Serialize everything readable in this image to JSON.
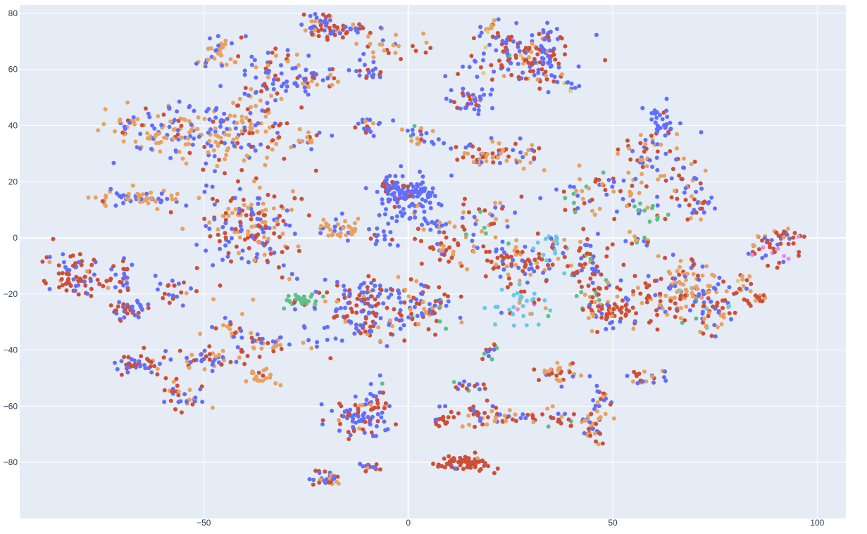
{
  "chart_data": {
    "type": "scatter",
    "title": "",
    "xlabel": "",
    "ylabel": "",
    "xlim": [
      -95,
      107
    ],
    "ylim": [
      -100,
      83
    ],
    "x_ticks": [
      -50,
      0,
      50,
      100
    ],
    "y_ticks": [
      80,
      60,
      40,
      20,
      0,
      -20,
      -40,
      -60,
      -80
    ],
    "x_tick_labels": [
      "−50",
      "0",
      "50",
      "100"
    ],
    "y_tick_labels": [
      "80",
      "60",
      "40",
      "20",
      "0",
      "−20",
      "−40",
      "−60",
      "−80"
    ],
    "grid": true,
    "legend": "none",
    "colors": {
      "blue": "#636efa",
      "red": "#cd4f37",
      "orange": "#e9a160",
      "green": "#5fbf8a",
      "cyan": "#6cc7e6",
      "pink": "#e88ae0",
      "yellow": "#d8d07a",
      "background": "#e5ecf6",
      "grid": "#ffffff",
      "tick_text": "#2a3f5f"
    },
    "clusters": [
      {
        "cx": -22,
        "cy": 76,
        "sx": 2.5,
        "sy": 2.5,
        "n": 40,
        "mix": [
          0.55,
          0.25,
          0.2,
          0,
          0,
          0,
          0
        ]
      },
      {
        "cx": -15,
        "cy": 74,
        "sx": 3.5,
        "sy": 1.5,
        "n": 35,
        "mix": [
          0.6,
          0.3,
          0.1,
          0,
          0,
          0,
          0
        ]
      },
      {
        "cx": -5,
        "cy": 68,
        "sx": 4,
        "sy": 2,
        "n": 25,
        "mix": [
          0.2,
          0.2,
          0.6,
          0,
          0,
          0,
          0
        ]
      },
      {
        "cx": -46,
        "cy": 67,
        "sx": 3,
        "sy": 4,
        "n": 35,
        "mix": [
          0.5,
          0.15,
          0.35,
          0,
          0,
          0,
          0
        ]
      },
      {
        "cx": -33,
        "cy": 58,
        "sx": 4,
        "sy": 5,
        "n": 60,
        "mix": [
          0.55,
          0.25,
          0.2,
          0,
          0,
          0,
          0
        ]
      },
      {
        "cx": -24,
        "cy": 57,
        "sx": 3,
        "sy": 3,
        "n": 30,
        "mix": [
          0.35,
          0.35,
          0.3,
          0,
          0,
          0,
          0
        ]
      },
      {
        "cx": -11,
        "cy": 59,
        "sx": 2,
        "sy": 2,
        "n": 20,
        "mix": [
          0.6,
          0.3,
          0.1,
          0,
          0,
          0,
          0
        ]
      },
      {
        "cx": -57,
        "cy": 38,
        "sx": 8,
        "sy": 5,
        "n": 130,
        "mix": [
          0.4,
          0.1,
          0.5,
          0,
          0,
          0,
          0
        ]
      },
      {
        "cx": -40,
        "cy": 38,
        "sx": 6,
        "sy": 6,
        "n": 120,
        "mix": [
          0.45,
          0.2,
          0.35,
          0,
          0,
          0,
          0
        ]
      },
      {
        "cx": -25,
        "cy": 35,
        "sx": 2,
        "sy": 2,
        "n": 15,
        "mix": [
          0.3,
          0.2,
          0.5,
          0,
          0,
          0,
          0
        ]
      },
      {
        "cx": -10,
        "cy": 40,
        "sx": 2,
        "sy": 2,
        "n": 20,
        "mix": [
          0.7,
          0.2,
          0.1,
          0,
          0,
          0,
          0
        ]
      },
      {
        "cx": -68,
        "cy": 14,
        "sx": 5,
        "sy": 1.5,
        "n": 60,
        "mix": [
          0.35,
          0.05,
          0.6,
          0,
          0,
          0,
          0
        ]
      },
      {
        "cx": -38,
        "cy": 4,
        "sx": 7,
        "sy": 8,
        "n": 180,
        "mix": [
          0.35,
          0.3,
          0.35,
          0,
          0,
          0,
          0
        ]
      },
      {
        "cx": -17,
        "cy": 3,
        "sx": 3,
        "sy": 2,
        "n": 40,
        "mix": [
          0.3,
          0.1,
          0.6,
          0,
          0,
          0,
          0
        ]
      },
      {
        "cx": 0,
        "cy": 14,
        "sx": 3.5,
        "sy": 4,
        "n": 110,
        "mix": [
          0.95,
          0.03,
          0.02,
          0,
          0,
          0,
          0
        ]
      },
      {
        "cx": -5,
        "cy": 19,
        "sx": 2,
        "sy": 2,
        "n": 25,
        "mix": [
          0.9,
          0.1,
          0,
          0,
          0,
          0,
          0
        ]
      },
      {
        "cx": 2,
        "cy": 36,
        "sx": 2,
        "sy": 2,
        "n": 20,
        "mix": [
          0.5,
          0.2,
          0.2,
          0.1,
          0,
          0,
          0
        ]
      },
      {
        "cx": -82,
        "cy": -13,
        "sx": 3,
        "sy": 4,
        "n": 70,
        "mix": [
          0.3,
          0.6,
          0.1,
          0,
          0,
          0,
          0
        ]
      },
      {
        "cx": -70,
        "cy": -13,
        "sx": 2,
        "sy": 4,
        "n": 30,
        "mix": [
          0.5,
          0.4,
          0.1,
          0,
          0,
          0,
          0
        ]
      },
      {
        "cx": -69,
        "cy": -25,
        "sx": 2.5,
        "sy": 2,
        "n": 35,
        "mix": [
          0.5,
          0.45,
          0.05,
          0,
          0,
          0,
          0
        ]
      },
      {
        "cx": -57,
        "cy": -20,
        "sx": 4,
        "sy": 3,
        "n": 25,
        "mix": [
          0.4,
          0.4,
          0.2,
          0,
          0,
          0,
          0
        ]
      },
      {
        "cx": -27,
        "cy": -22,
        "sx": 2.5,
        "sy": 2,
        "n": 30,
        "mix": [
          0,
          0.05,
          0,
          0.95,
          0,
          0,
          0
        ]
      },
      {
        "cx": -14,
        "cy": -27,
        "sx": 5,
        "sy": 6,
        "n": 80,
        "mix": [
          0.6,
          0.3,
          0.1,
          0,
          0,
          0,
          0
        ]
      },
      {
        "cx": -5,
        "cy": -25,
        "sx": 5,
        "sy": 6,
        "n": 90,
        "mix": [
          0.55,
          0.4,
          0.05,
          0,
          0,
          0,
          0
        ]
      },
      {
        "cx": 5,
        "cy": -25,
        "sx": 4,
        "sy": 5,
        "n": 50,
        "mix": [
          0.3,
          0.3,
          0.35,
          0.05,
          0,
          0,
          0
        ]
      },
      {
        "cx": -48,
        "cy": -42,
        "sx": 4,
        "sy": 2,
        "n": 45,
        "mix": [
          0.5,
          0.2,
          0.3,
          0,
          0,
          0,
          0
        ]
      },
      {
        "cx": -42,
        "cy": -33,
        "sx": 3,
        "sy": 2,
        "n": 20,
        "mix": [
          0.3,
          0.3,
          0.4,
          0,
          0,
          0,
          0
        ]
      },
      {
        "cx": -34,
        "cy": -37,
        "sx": 4,
        "sy": 2,
        "n": 30,
        "mix": [
          0.2,
          0.3,
          0.5,
          0,
          0,
          0,
          0
        ]
      },
      {
        "cx": -36,
        "cy": -50,
        "sx": 2,
        "sy": 1.5,
        "n": 20,
        "mix": [
          0.05,
          0.05,
          0.9,
          0,
          0,
          0,
          0
        ]
      },
      {
        "cx": -66,
        "cy": -45,
        "sx": 3,
        "sy": 2,
        "n": 40,
        "mix": [
          0.5,
          0.45,
          0.05,
          0,
          0,
          0,
          0
        ]
      },
      {
        "cx": -55,
        "cy": -56,
        "sx": 3,
        "sy": 3,
        "n": 35,
        "mix": [
          0.3,
          0.35,
          0.35,
          0,
          0,
          0,
          0
        ]
      },
      {
        "cx": -12,
        "cy": -64,
        "sx": 4,
        "sy": 3,
        "n": 70,
        "mix": [
          0.6,
          0.35,
          0.05,
          0,
          0,
          0,
          0
        ]
      },
      {
        "cx": -8,
        "cy": -58,
        "sx": 2,
        "sy": 3,
        "n": 20,
        "mix": [
          0.5,
          0.2,
          0.15,
          0.15,
          0,
          0,
          0
        ]
      },
      {
        "cx": -20,
        "cy": -86,
        "sx": 2,
        "sy": 1.5,
        "n": 35,
        "mix": [
          0.5,
          0.2,
          0.3,
          0,
          0,
          0,
          0
        ]
      },
      {
        "cx": -9,
        "cy": -82,
        "sx": 1.5,
        "sy": 1,
        "n": 15,
        "mix": [
          0.6,
          0.3,
          0.1,
          0,
          0,
          0,
          0
        ]
      },
      {
        "cx": 14,
        "cy": -80,
        "sx": 3,
        "sy": 1.5,
        "n": 70,
        "mix": [
          0.02,
          0.95,
          0.03,
          0,
          0,
          0,
          0
        ]
      },
      {
        "cx": 8,
        "cy": -65,
        "sx": 1.5,
        "sy": 1,
        "n": 12,
        "mix": [
          0.05,
          0.95,
          0,
          0,
          0,
          0,
          0
        ]
      },
      {
        "cx": 17,
        "cy": -63,
        "sx": 4,
        "sy": 2.5,
        "n": 40,
        "mix": [
          0.3,
          0.5,
          0.2,
          0,
          0,
          0,
          0
        ]
      },
      {
        "cx": 25,
        "cy": -64,
        "sx": 3,
        "sy": 1,
        "n": 15,
        "mix": [
          0.2,
          0.3,
          0.5,
          0,
          0,
          0,
          0
        ]
      },
      {
        "cx": 15,
        "cy": -53,
        "sx": 2,
        "sy": 1.5,
        "n": 15,
        "mix": [
          0.4,
          0.2,
          0.2,
          0.2,
          0,
          0,
          0
        ]
      },
      {
        "cx": 20,
        "cy": -40,
        "sx": 1.5,
        "sy": 2,
        "n": 12,
        "mix": [
          0.2,
          0.3,
          0.3,
          0.2,
          0,
          0,
          0
        ]
      },
      {
        "cx": 37,
        "cy": -48,
        "sx": 3,
        "sy": 2,
        "n": 30,
        "mix": [
          0.2,
          0.4,
          0.4,
          0,
          0,
          0,
          0
        ]
      },
      {
        "cx": 35,
        "cy": -64,
        "sx": 3,
        "sy": 2,
        "n": 20,
        "mix": [
          0.3,
          0.3,
          0.3,
          0.1,
          0,
          0,
          0
        ]
      },
      {
        "cx": 45,
        "cy": -67,
        "sx": 2,
        "sy": 3,
        "n": 40,
        "mix": [
          0.3,
          0.4,
          0.3,
          0,
          0,
          0,
          0
        ]
      },
      {
        "cx": 48,
        "cy": -57,
        "sx": 2,
        "sy": 2,
        "n": 15,
        "mix": [
          0.5,
          0.2,
          0.3,
          0,
          0,
          0,
          0
        ]
      },
      {
        "cx": 59,
        "cy": -50,
        "sx": 3,
        "sy": 1.5,
        "n": 20,
        "mix": [
          0.3,
          0.2,
          0.4,
          0.1,
          0,
          0,
          0
        ]
      },
      {
        "cx": 24,
        "cy": 64,
        "sx": 6,
        "sy": 5,
        "n": 90,
        "mix": [
          0.55,
          0.35,
          0.05,
          0.02,
          0,
          0,
          0.03
        ]
      },
      {
        "cx": 33,
        "cy": 66,
        "sx": 4,
        "sy": 5,
        "n": 70,
        "mix": [
          0.5,
          0.4,
          0.1,
          0,
          0,
          0,
          0
        ]
      },
      {
        "cx": 15,
        "cy": 49,
        "sx": 3,
        "sy": 2,
        "n": 35,
        "mix": [
          0.6,
          0.3,
          0.1,
          0,
          0,
          0,
          0
        ]
      },
      {
        "cx": 20,
        "cy": 75,
        "sx": 1,
        "sy": 1,
        "n": 8,
        "mix": [
          0.2,
          0.2,
          0.4,
          0,
          0,
          0,
          0.2
        ]
      },
      {
        "cx": 15,
        "cy": 30,
        "sx": 3,
        "sy": 3,
        "n": 25,
        "mix": [
          0.4,
          0.3,
          0.3,
          0,
          0,
          0,
          0
        ]
      },
      {
        "cx": 25,
        "cy": 30,
        "sx": 4,
        "sy": 3,
        "n": 40,
        "mix": [
          0.25,
          0.3,
          0.45,
          0,
          0,
          0,
          0
        ]
      },
      {
        "cx": 19,
        "cy": 8,
        "sx": 4,
        "sy": 4,
        "n": 35,
        "mix": [
          0.3,
          0.3,
          0.3,
          0.1,
          0,
          0,
          0
        ]
      },
      {
        "cx": 10,
        "cy": -3,
        "sx": 4,
        "sy": 3,
        "n": 40,
        "mix": [
          0.3,
          0.4,
          0.25,
          0.05,
          0,
          0,
          0
        ]
      },
      {
        "cx": 26,
        "cy": -8,
        "sx": 5,
        "sy": 4,
        "n": 80,
        "mix": [
          0.3,
          0.45,
          0.2,
          0.05,
          0,
          0,
          0
        ]
      },
      {
        "cx": 35,
        "cy": -3,
        "sx": 2,
        "sy": 3,
        "n": 20,
        "mix": [
          0.05,
          0.05,
          0.1,
          0.05,
          0.75,
          0,
          0
        ]
      },
      {
        "cx": 29,
        "cy": -24,
        "sx": 4,
        "sy": 4,
        "n": 40,
        "mix": [
          0.05,
          0.1,
          0.1,
          0.05,
          0.6,
          0.1,
          0
        ]
      },
      {
        "cx": 44,
        "cy": -12,
        "sx": 3,
        "sy": 6,
        "n": 70,
        "mix": [
          0.3,
          0.4,
          0.2,
          0.1,
          0,
          0,
          0
        ]
      },
      {
        "cx": 47,
        "cy": -27,
        "sx": 3,
        "sy": 3,
        "n": 40,
        "mix": [
          0.4,
          0.45,
          0.15,
          0,
          0,
          0,
          0
        ]
      },
      {
        "cx": 46,
        "cy": 15,
        "sx": 6,
        "sy": 5,
        "n": 60,
        "mix": [
          0.3,
          0.3,
          0.3,
          0.1,
          0,
          0,
          0
        ]
      },
      {
        "cx": 62,
        "cy": 42,
        "sx": 2,
        "sy": 3,
        "n": 30,
        "mix": [
          0.85,
          0.15,
          0,
          0,
          0,
          0,
          0
        ]
      },
      {
        "cx": 60,
        "cy": 28,
        "sx": 5,
        "sy": 6,
        "n": 60,
        "mix": [
          0.45,
          0.3,
          0.25,
          0,
          0,
          0,
          0
        ]
      },
      {
        "cx": 70,
        "cy": 14,
        "sx": 3,
        "sy": 5,
        "n": 40,
        "mix": [
          0.4,
          0.4,
          0.2,
          0,
          0,
          0,
          0
        ]
      },
      {
        "cx": 59,
        "cy": 9,
        "sx": 3,
        "sy": 2,
        "n": 15,
        "mix": [
          0.1,
          0.2,
          0.2,
          0.5,
          0,
          0,
          0
        ]
      },
      {
        "cx": 56,
        "cy": -1,
        "sx": 3,
        "sy": 1.5,
        "n": 15,
        "mix": [
          0.4,
          0.2,
          0.3,
          0.1,
          0,
          0,
          0
        ]
      },
      {
        "cx": 55,
        "cy": -25,
        "sx": 5,
        "sy": 3,
        "n": 45,
        "mix": [
          0.3,
          0.4,
          0.3,
          0,
          0,
          0,
          0
        ]
      },
      {
        "cx": 66,
        "cy": -18,
        "sx": 5,
        "sy": 5,
        "n": 90,
        "mix": [
          0.2,
          0.45,
          0.35,
          0,
          0,
          0,
          0
        ]
      },
      {
        "cx": 72,
        "cy": -23,
        "sx": 4,
        "sy": 6,
        "n": 80,
        "mix": [
          0.3,
          0.3,
          0.3,
          0.05,
          0.05,
          0,
          0
        ]
      },
      {
        "cx": 81,
        "cy": -17,
        "sx": 2,
        "sy": 2,
        "n": 15,
        "mix": [
          0.1,
          0.5,
          0.3,
          0,
          0,
          0,
          0.1
        ]
      },
      {
        "cx": 85,
        "cy": -22,
        "sx": 1.5,
        "sy": 1.5,
        "n": 15,
        "mix": [
          0.1,
          0.7,
          0.2,
          0,
          0,
          0,
          0
        ]
      },
      {
        "cx": 89,
        "cy": -4,
        "sx": 3,
        "sy": 3,
        "n": 35,
        "mix": [
          0.35,
          0.4,
          0.15,
          0,
          0,
          0.1,
          0
        ]
      },
      {
        "cx": 92,
        "cy": 1,
        "sx": 2,
        "sy": 1.5,
        "n": 20,
        "mix": [
          0.2,
          0.4,
          0.2,
          0,
          0,
          0.2,
          0
        ]
      },
      {
        "cx": 38,
        "cy": 55,
        "sx": 2,
        "sy": 2,
        "n": 15,
        "mix": [
          0.7,
          0.1,
          0.1,
          0,
          0,
          0,
          0.1
        ]
      },
      {
        "cx": -7,
        "cy": 1,
        "sx": 2,
        "sy": 2,
        "n": 15,
        "mix": [
          0.7,
          0.2,
          0.1,
          0,
          0,
          0,
          0
        ]
      },
      {
        "cx": 7,
        "cy": 5,
        "sx": 2,
        "sy": 2,
        "n": 15,
        "mix": [
          0.7,
          0.2,
          0.1,
          0,
          0,
          0,
          0
        ]
      }
    ]
  }
}
